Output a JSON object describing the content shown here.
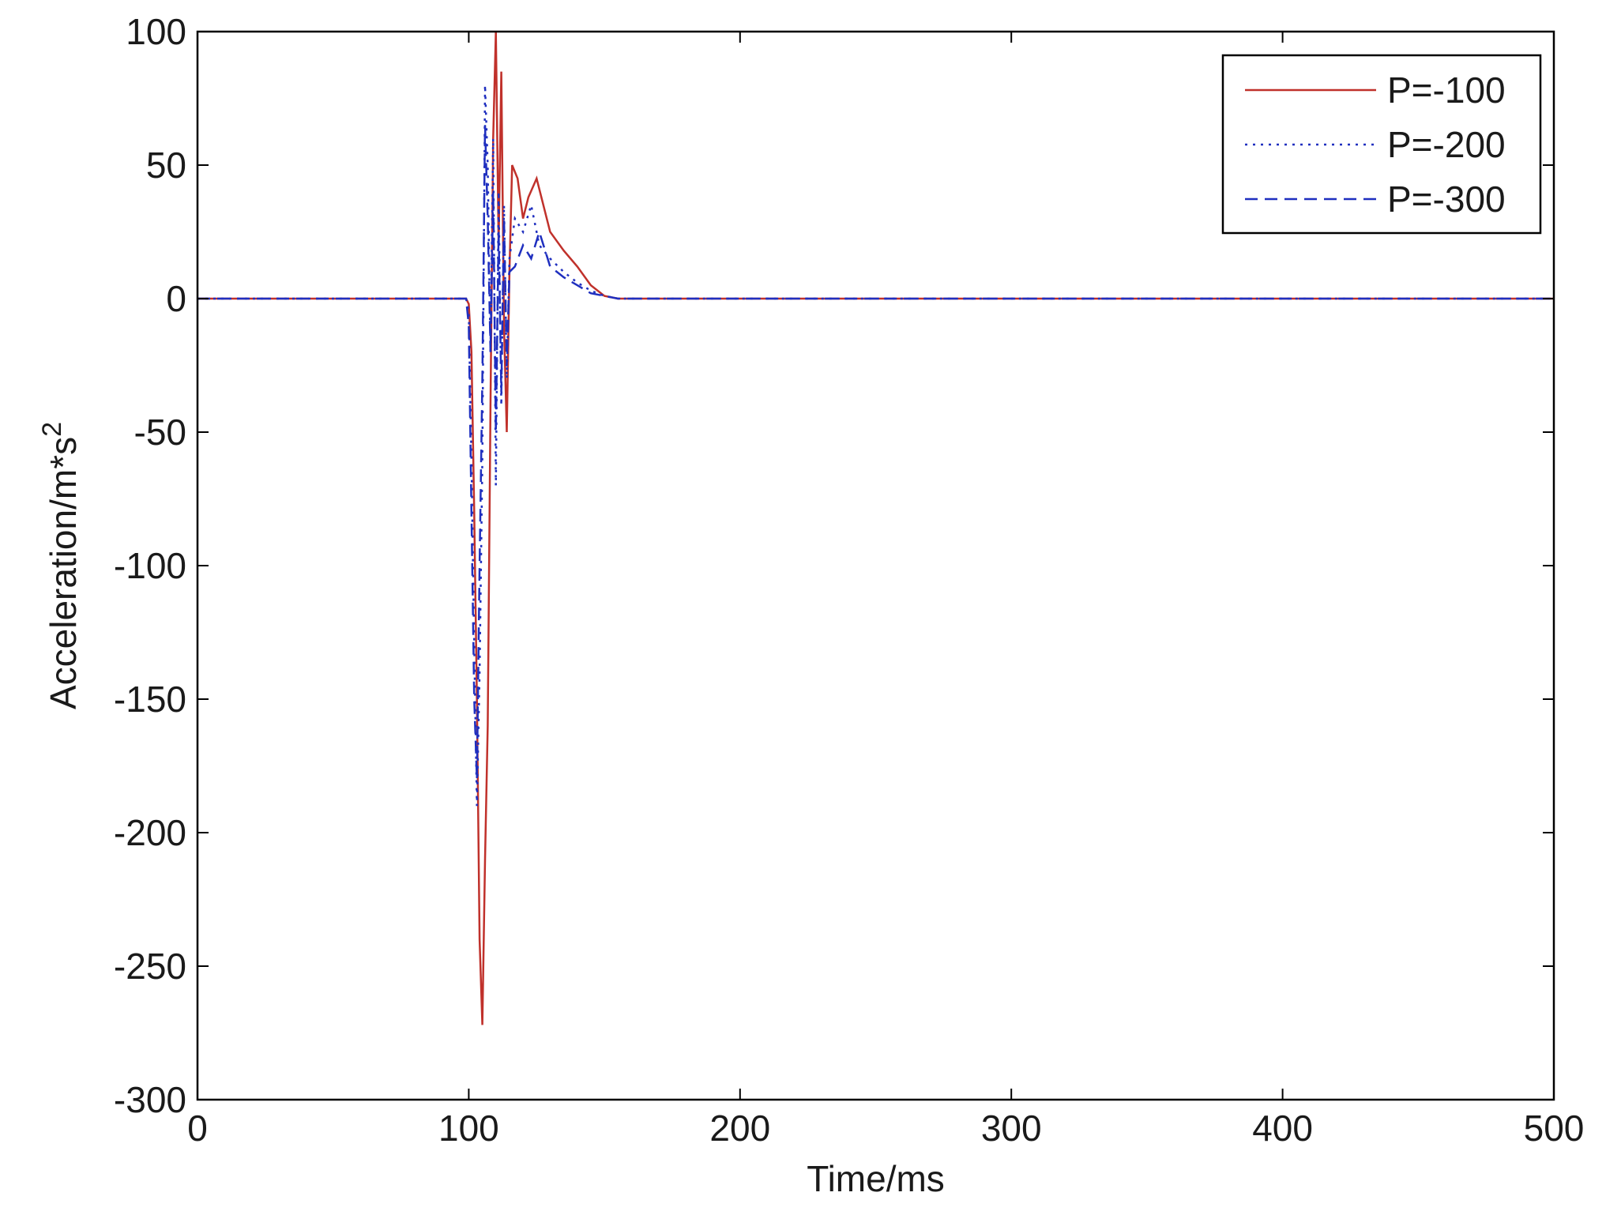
{
  "chart_data": {
    "type": "line",
    "title": "",
    "xlabel": "Time/ms",
    "ylabel": "Acceleration/m*s",
    "ylabel_superscript": "2",
    "xlim": [
      0,
      500
    ],
    "ylim": [
      -300,
      100
    ],
    "xticks": [
      "0",
      "100",
      "200",
      "300",
      "400",
      "500"
    ],
    "yticks": [
      "100",
      "50",
      "0",
      "-50",
      "-100",
      "-150",
      "-200",
      "-250",
      "-300"
    ],
    "grid": false,
    "legend_position": "top-right",
    "series": [
      {
        "name": "P=-100",
        "color": "#c0312b",
        "style": "solid",
        "x": [
          0,
          99,
          100,
          101,
          102,
          103,
          104,
          105,
          106,
          107,
          108,
          109,
          110,
          111,
          112,
          113,
          114,
          115,
          116,
          118,
          120,
          122,
          125,
          130,
          135,
          140,
          145,
          150,
          155,
          500
        ],
        "y": [
          0,
          0,
          -2,
          -20,
          -80,
          -150,
          -240,
          -272,
          -210,
          -160,
          -40,
          60,
          100,
          20,
          85,
          -10,
          -50,
          10,
          50,
          45,
          30,
          38,
          45,
          25,
          18,
          12,
          5,
          1,
          0,
          0
        ]
      },
      {
        "name": "P=-200",
        "color": "#1f2fbf",
        "style": "dotted",
        "x": [
          0,
          99,
          100,
          101,
          102,
          103,
          104,
          105,
          106,
          107,
          108,
          109,
          110,
          111,
          112,
          113,
          114,
          115,
          117,
          120,
          123,
          126,
          130,
          135,
          140,
          145,
          150,
          155,
          500
        ],
        "y": [
          0,
          0,
          -5,
          -60,
          -130,
          -190,
          -140,
          -60,
          80,
          50,
          -20,
          60,
          -70,
          40,
          -40,
          35,
          -30,
          15,
          30,
          25,
          35,
          20,
          15,
          10,
          6,
          3,
          1,
          0,
          0
        ]
      },
      {
        "name": "P=-300",
        "color": "#1f2fbf",
        "style": "dashed",
        "x": [
          0,
          99,
          100,
          101,
          102,
          103,
          104,
          105,
          106,
          107,
          108,
          109,
          110,
          111,
          112,
          113,
          114,
          115,
          117,
          120,
          123,
          126,
          130,
          135,
          140,
          145,
          150,
          155,
          500
        ],
        "y": [
          0,
          0,
          -10,
          -80,
          -150,
          -180,
          -100,
          -30,
          65,
          30,
          -20,
          40,
          -50,
          25,
          -35,
          30,
          -25,
          10,
          12,
          20,
          15,
          25,
          12,
          8,
          5,
          2,
          1,
          0,
          0
        ]
      }
    ]
  }
}
